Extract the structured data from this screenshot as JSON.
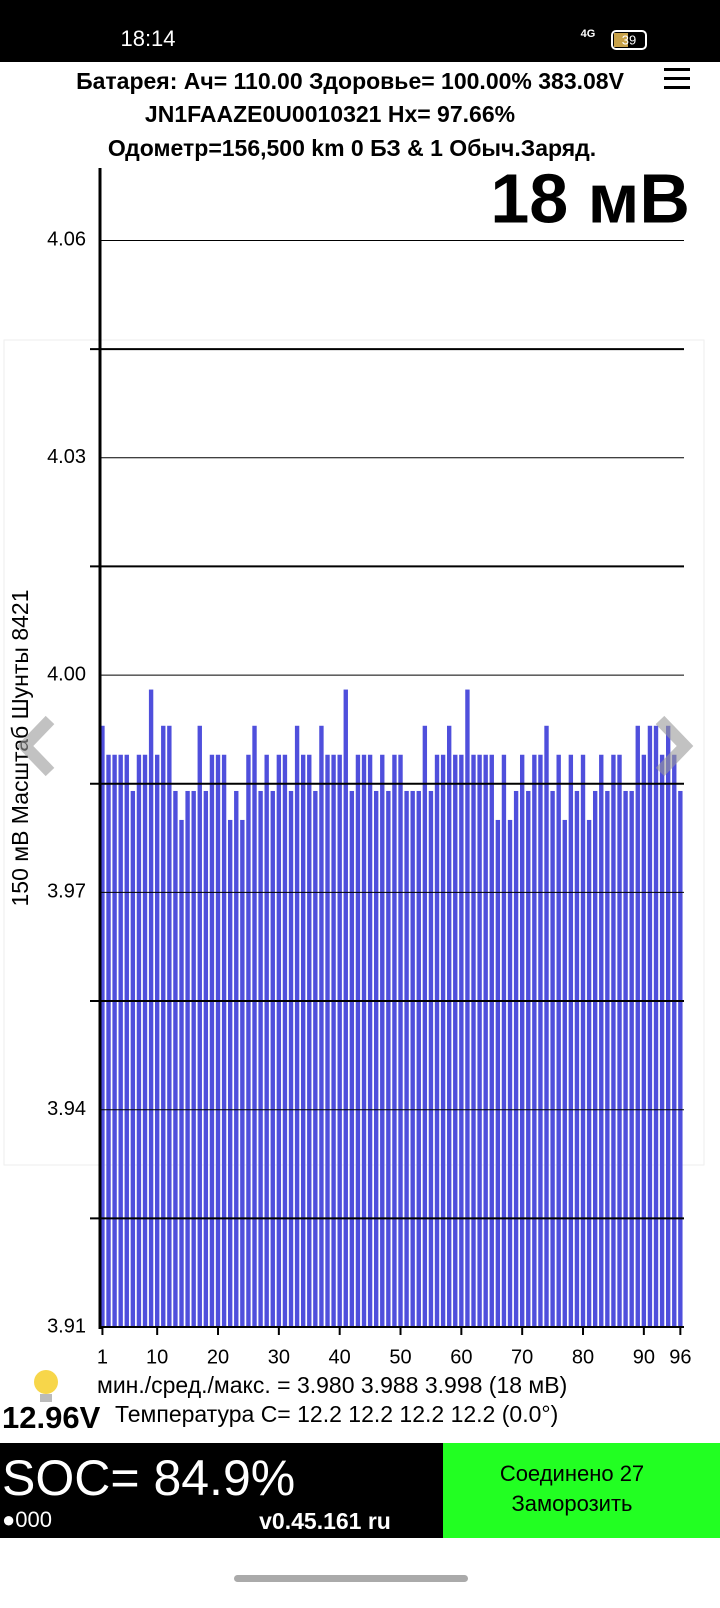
{
  "status_bar": {
    "time": "18:14",
    "network": "4G",
    "battery": "39"
  },
  "header": {
    "line1": "Батарея: Ач= 110.00 Здоровье= 100.00% 383.08V",
    "line2": "JN1FAAZE0U0010321   Hx= 97.66%",
    "line3": "Одометр=156,500 km 0 БЗ & 1 Обыч.Заряд.",
    "big_delta": "18 мВ"
  },
  "chart_data": {
    "type": "bar",
    "ylabel": "150 мВ Масштаб  Шунты 8421",
    "x": [
      1,
      2,
      3,
      4,
      5,
      6,
      7,
      8,
      9,
      10,
      11,
      12,
      13,
      14,
      15,
      16,
      17,
      18,
      19,
      20,
      21,
      22,
      23,
      24,
      25,
      26,
      27,
      28,
      29,
      30,
      31,
      32,
      33,
      34,
      35,
      36,
      37,
      38,
      39,
      40,
      41,
      42,
      43,
      44,
      45,
      46,
      47,
      48,
      49,
      50,
      51,
      52,
      53,
      54,
      55,
      56,
      57,
      58,
      59,
      60,
      61,
      62,
      63,
      64,
      65,
      66,
      67,
      68,
      69,
      70,
      71,
      72,
      73,
      74,
      75,
      76,
      77,
      78,
      79,
      80,
      81,
      82,
      83,
      84,
      85,
      86,
      87,
      88,
      89,
      90,
      91,
      92,
      93,
      94,
      95,
      96
    ],
    "values": [
      3.993,
      3.989,
      3.989,
      3.989,
      3.989,
      3.984,
      3.989,
      3.989,
      3.998,
      3.989,
      3.993,
      3.993,
      3.984,
      3.98,
      3.984,
      3.984,
      3.993,
      3.984,
      3.989,
      3.989,
      3.989,
      3.98,
      3.984,
      3.98,
      3.989,
      3.993,
      3.984,
      3.989,
      3.984,
      3.989,
      3.989,
      3.984,
      3.993,
      3.989,
      3.989,
      3.984,
      3.993,
      3.989,
      3.989,
      3.989,
      3.998,
      3.984,
      3.989,
      3.989,
      3.989,
      3.984,
      3.989,
      3.984,
      3.989,
      3.989,
      3.984,
      3.984,
      3.984,
      3.993,
      3.984,
      3.989,
      3.989,
      3.993,
      3.989,
      3.989,
      3.998,
      3.989,
      3.989,
      3.989,
      3.989,
      3.98,
      3.989,
      3.98,
      3.984,
      3.989,
      3.984,
      3.989,
      3.989,
      3.993,
      3.984,
      3.989,
      3.98,
      3.989,
      3.984,
      3.989,
      3.98,
      3.984,
      3.989,
      3.984,
      3.989,
      3.989,
      3.984,
      3.984,
      3.993,
      3.989,
      3.993,
      3.993,
      3.989,
      3.993,
      3.989,
      3.984
    ],
    "color": "#4f4fdc",
    "xlim": [
      0.6,
      96.6
    ],
    "xticks": [
      1,
      10,
      20,
      30,
      40,
      50,
      60,
      70,
      80,
      90,
      96
    ],
    "ylim": [
      3.91,
      4.07
    ],
    "yticks": [
      3.91,
      3.94,
      3.97,
      {
        "value": 4.0,
        "label": "4.00"
      },
      4.03,
      4.06
    ],
    "yminor": [
      3.925,
      3.955,
      3.985,
      4.015,
      4.045
    ],
    "grid": true
  },
  "footer": {
    "stats": "мин./сред./макс. = 3.980 3.988 3.998  (18 мВ)",
    "temperature": "Температура C= 12.2  12.2  12.2  12.2  (0.0°)",
    "voltage": "12.96V",
    "soc": "SOC= 84.9%",
    "dots": "●000",
    "version": "v0.45.161 ru",
    "connected": "Соединено 27",
    "freeze": "Заморозить"
  }
}
